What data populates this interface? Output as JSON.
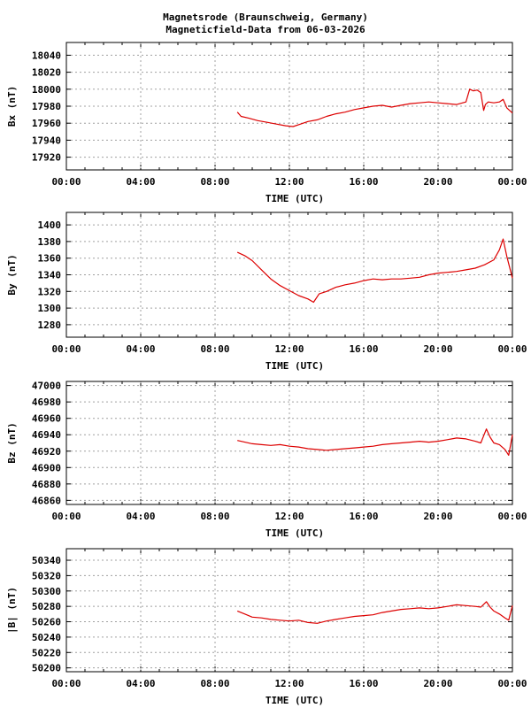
{
  "header": {
    "title": "Magnetsrode (Braunschweig, Germany)",
    "subtitle": "Magneticfield-Data from 06-03-2026"
  },
  "colors": {
    "series": "#dd0000",
    "grid": "#a0a0a0",
    "axis": "#000000"
  },
  "chart_data": [
    {
      "type": "line",
      "ylabel": "Bx (nT)",
      "xlabel": "TIME (UTC)",
      "xlim": [
        0,
        24
      ],
      "ylim": [
        17905,
        18055
      ],
      "yticks": [
        17920,
        17940,
        17960,
        17980,
        18000,
        18020,
        18040
      ],
      "xticks": [
        "00:00",
        "04:00",
        "08:00",
        "12:00",
        "16:00",
        "20:00",
        "00:00"
      ],
      "grid": true,
      "series": [
        {
          "color": "#dd0000",
          "x": [
            9.2,
            9.4,
            9.8,
            10.3,
            10.8,
            11.3,
            11.8,
            12.2,
            12.6,
            13.0,
            13.5,
            14.0,
            14.5,
            15.0,
            15.5,
            16.0,
            16.5,
            17.0,
            17.5,
            18.0,
            18.5,
            19.0,
            19.5,
            20.0,
            20.5,
            21.0,
            21.5,
            21.7,
            21.9,
            22.1,
            22.3,
            22.45,
            22.55,
            22.7,
            23.0,
            23.3,
            23.5,
            23.7,
            24.0
          ],
          "y": [
            17973,
            17968,
            17966,
            17963,
            17961,
            17959,
            17957,
            17956,
            17959,
            17962,
            17964,
            17968,
            17971,
            17973,
            17976,
            17978,
            17980,
            17981,
            17979,
            17981,
            17983,
            17984,
            17985,
            17984,
            17983,
            17982,
            17985,
            18000,
            17998,
            17999,
            17996,
            17975,
            17982,
            17985,
            17984,
            17985,
            17988,
            17978,
            17972
          ]
        }
      ]
    },
    {
      "type": "line",
      "ylabel": "By (nT)",
      "xlabel": "TIME (UTC)",
      "xlim": [
        0,
        24
      ],
      "ylim": [
        1265,
        1415
      ],
      "yticks": [
        1280,
        1300,
        1320,
        1340,
        1360,
        1380,
        1400
      ],
      "xticks": [
        "00:00",
        "04:00",
        "08:00",
        "12:00",
        "16:00",
        "20:00",
        "00:00"
      ],
      "grid": true,
      "series": [
        {
          "color": "#dd0000",
          "x": [
            9.2,
            9.6,
            10.0,
            10.5,
            11.0,
            11.5,
            12.0,
            12.5,
            13.0,
            13.3,
            13.6,
            14.0,
            14.5,
            15.0,
            15.5,
            16.0,
            16.5,
            17.0,
            17.5,
            18.0,
            18.5,
            19.0,
            19.5,
            20.0,
            20.5,
            21.0,
            21.5,
            22.0,
            22.5,
            23.0,
            23.3,
            23.5,
            23.7,
            24.0
          ],
          "y": [
            1367,
            1363,
            1357,
            1346,
            1335,
            1327,
            1321,
            1315,
            1311,
            1307,
            1317,
            1320,
            1325,
            1328,
            1330,
            1333,
            1335,
            1334,
            1335,
            1335,
            1336,
            1337,
            1340,
            1342,
            1343,
            1344,
            1346,
            1348,
            1352,
            1358,
            1370,
            1383,
            1362,
            1336
          ]
        }
      ]
    },
    {
      "type": "line",
      "ylabel": "Bz (nT)",
      "xlabel": "TIME (UTC)",
      "xlim": [
        0,
        24
      ],
      "ylim": [
        46855,
        47005
      ],
      "yticks": [
        46860,
        46880,
        46900,
        46920,
        46940,
        46960,
        46980,
        47000
      ],
      "xticks": [
        "00:00",
        "04:00",
        "08:00",
        "12:00",
        "16:00",
        "20:00",
        "00:00"
      ],
      "grid": true,
      "series": [
        {
          "color": "#dd0000",
          "x": [
            9.2,
            9.6,
            10.0,
            10.5,
            11.0,
            11.5,
            12.0,
            12.5,
            13.0,
            13.5,
            14.0,
            14.5,
            15.0,
            15.5,
            16.0,
            16.5,
            17.0,
            17.5,
            18.0,
            18.5,
            19.0,
            19.5,
            20.0,
            20.5,
            21.0,
            21.5,
            22.0,
            22.3,
            22.6,
            22.8,
            23.0,
            23.3,
            23.6,
            23.8,
            24.0
          ],
          "y": [
            46933,
            46931,
            46929,
            46928,
            46927,
            46928,
            46926,
            46925,
            46923,
            46922,
            46921,
            46922,
            46923,
            46924,
            46925,
            46926,
            46928,
            46929,
            46930,
            46931,
            46932,
            46931,
            46932,
            46934,
            46936,
            46935,
            46932,
            46930,
            46947,
            46937,
            46930,
            46928,
            46922,
            46915,
            46940
          ]
        }
      ]
    },
    {
      "type": "line",
      "ylabel": "|B| (nT)",
      "xlabel": "TIME (UTC)",
      "xlim": [
        0,
        24
      ],
      "ylim": [
        50195,
        50355
      ],
      "yticks": [
        50200,
        50220,
        50240,
        50260,
        50280,
        50300,
        50320,
        50340
      ],
      "xticks": [
        "00:00",
        "04:00",
        "08:00",
        "12:00",
        "16:00",
        "20:00",
        "00:00"
      ],
      "grid": true,
      "series": [
        {
          "color": "#dd0000",
          "x": [
            9.2,
            9.6,
            10.0,
            10.5,
            11.0,
            11.5,
            12.0,
            12.5,
            13.0,
            13.5,
            14.0,
            14.5,
            15.0,
            15.5,
            16.0,
            16.5,
            17.0,
            17.5,
            18.0,
            18.5,
            19.0,
            19.5,
            20.0,
            20.5,
            21.0,
            21.5,
            22.0,
            22.3,
            22.6,
            22.8,
            23.0,
            23.3,
            23.6,
            23.8,
            24.0
          ],
          "y": [
            50274,
            50270,
            50266,
            50265,
            50263,
            50262,
            50261,
            50262,
            50259,
            50258,
            50261,
            50263,
            50265,
            50267,
            50268,
            50269,
            50272,
            50274,
            50276,
            50277,
            50278,
            50277,
            50278,
            50280,
            50282,
            50281,
            50280,
            50279,
            50286,
            50279,
            50274,
            50270,
            50265,
            50262,
            50281
          ]
        }
      ]
    }
  ]
}
